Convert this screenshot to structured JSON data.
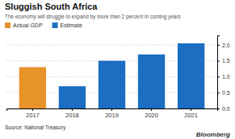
{
  "chart_data": {
    "type": "bar",
    "title": "Sluggish South Africa",
    "subtitle": "The economy will struggle to expand by more than 2 percent in coming years",
    "categories": [
      "2017",
      "2018",
      "2019",
      "2020",
      "2021"
    ],
    "series": [
      {
        "name": "Actual GDP",
        "color": "#E8922A",
        "values": [
          1.3,
          null,
          null,
          null,
          null
        ]
      },
      {
        "name": "Estimate",
        "color": "#1B6EC2",
        "values": [
          null,
          0.7,
          1.5,
          1.7,
          2.05
        ]
      }
    ],
    "stacked": true,
    "ylim": [
      0,
      2.3
    ],
    "yticks": [
      {
        "value": 0,
        "label": "0.0"
      },
      0.5,
      {
        "value": 1,
        "label": "1.0"
      },
      1.5,
      {
        "value": 2,
        "label": "2.0"
      }
    ],
    "grid": true,
    "legend": "top-left",
    "annotations": [
      "Source: National Treasury",
      "Bloomberg"
    ]
  }
}
